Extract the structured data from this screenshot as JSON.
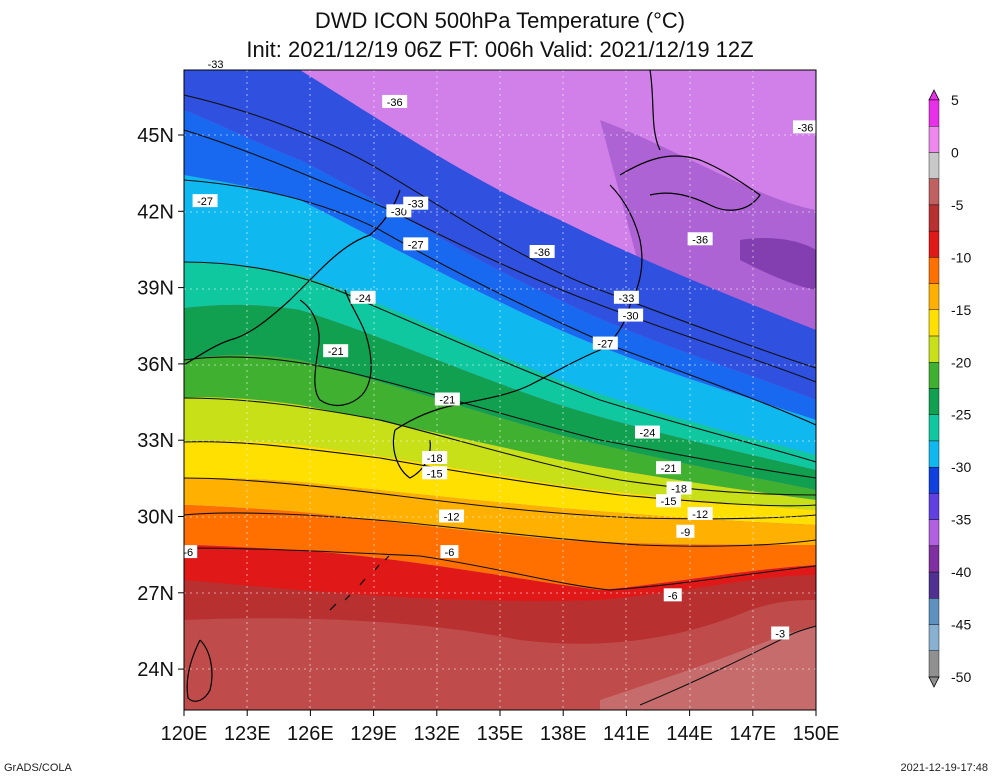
{
  "title": {
    "line1": "DWD ICON 500hPa Temperature (°C)",
    "line2": "Init: 2021/12/19 06Z  FT: 006h  Valid: 2021/12/19 12Z"
  },
  "lat_labels": [
    "45N",
    "42N",
    "39N",
    "36N",
    "33N",
    "30N",
    "27N",
    "24N"
  ],
  "lon_labels": [
    "120E",
    "123E",
    "126E",
    "129E",
    "132E",
    "135E",
    "138E",
    "141E",
    "144E",
    "147E",
    "150E"
  ],
  "colorbar": {
    "labels": [
      "5",
      "0",
      "-5",
      "-10",
      "-15",
      "-20",
      "-25",
      "-30",
      "-35",
      "-40",
      "-45",
      "-50"
    ],
    "colors": [
      "#e830e8",
      "#ee88ee",
      "#c8c8c8",
      "#c06060",
      "#b83030",
      "#e01818",
      "#ff7000",
      "#ffb000",
      "#ffe000",
      "#c8e018",
      "#40b030",
      "#10a050",
      "#10c8a0",
      "#10b8f0",
      "#1040e0",
      "#6040e0",
      "#b060e0",
      "#8030a0",
      "#503090",
      "#6090c0",
      "#88b0d0",
      "#909090"
    ]
  },
  "contour_labels": [
    {
      "text": "-33",
      "lon": 121.5,
      "lat": 47.8
    },
    {
      "text": "-36",
      "lon": 130.0,
      "lat": 46.3
    },
    {
      "text": "-36",
      "lon": 149.5,
      "lat": 45.3
    },
    {
      "text": "-27",
      "lon": 121.0,
      "lat": 42.4
    },
    {
      "text": "-30",
      "lon": 130.2,
      "lat": 42.0
    },
    {
      "text": "-33",
      "lon": 131.0,
      "lat": 42.3
    },
    {
      "text": "-27",
      "lon": 131.0,
      "lat": 40.7
    },
    {
      "text": "-36",
      "lon": 137.0,
      "lat": 40.4
    },
    {
      "text": "-36",
      "lon": 144.5,
      "lat": 40.9
    },
    {
      "text": "-24",
      "lon": 128.5,
      "lat": 38.6
    },
    {
      "text": "-33",
      "lon": 141.0,
      "lat": 38.6
    },
    {
      "text": "-30",
      "lon": 141.2,
      "lat": 37.9
    },
    {
      "text": "-27",
      "lon": 140.0,
      "lat": 36.8
    },
    {
      "text": "-21",
      "lon": 127.2,
      "lat": 36.5
    },
    {
      "text": "-21",
      "lon": 132.5,
      "lat": 34.6
    },
    {
      "text": "-24",
      "lon": 142.0,
      "lat": 33.3
    },
    {
      "text": "-18",
      "lon": 131.9,
      "lat": 32.3
    },
    {
      "text": "-15",
      "lon": 131.9,
      "lat": 31.7
    },
    {
      "text": "-21",
      "lon": 143.0,
      "lat": 31.9
    },
    {
      "text": "-18",
      "lon": 143.5,
      "lat": 31.1
    },
    {
      "text": "-15",
      "lon": 143.0,
      "lat": 30.6
    },
    {
      "text": "-12",
      "lon": 144.5,
      "lat": 30.1
    },
    {
      "text": "-12",
      "lon": 132.7,
      "lat": 30.0
    },
    {
      "text": "-9",
      "lon": 143.8,
      "lat": 29.4
    },
    {
      "text": "-6",
      "lon": 120.2,
      "lat": 28.6
    },
    {
      "text": "-6",
      "lon": 132.6,
      "lat": 28.6
    },
    {
      "text": "-6",
      "lon": 143.2,
      "lat": 26.9
    },
    {
      "text": "-3",
      "lon": 148.3,
      "lat": 25.4
    }
  ],
  "footer": {
    "left": "GrADS/COLA",
    "right": "2021-12-19-17:48"
  }
}
